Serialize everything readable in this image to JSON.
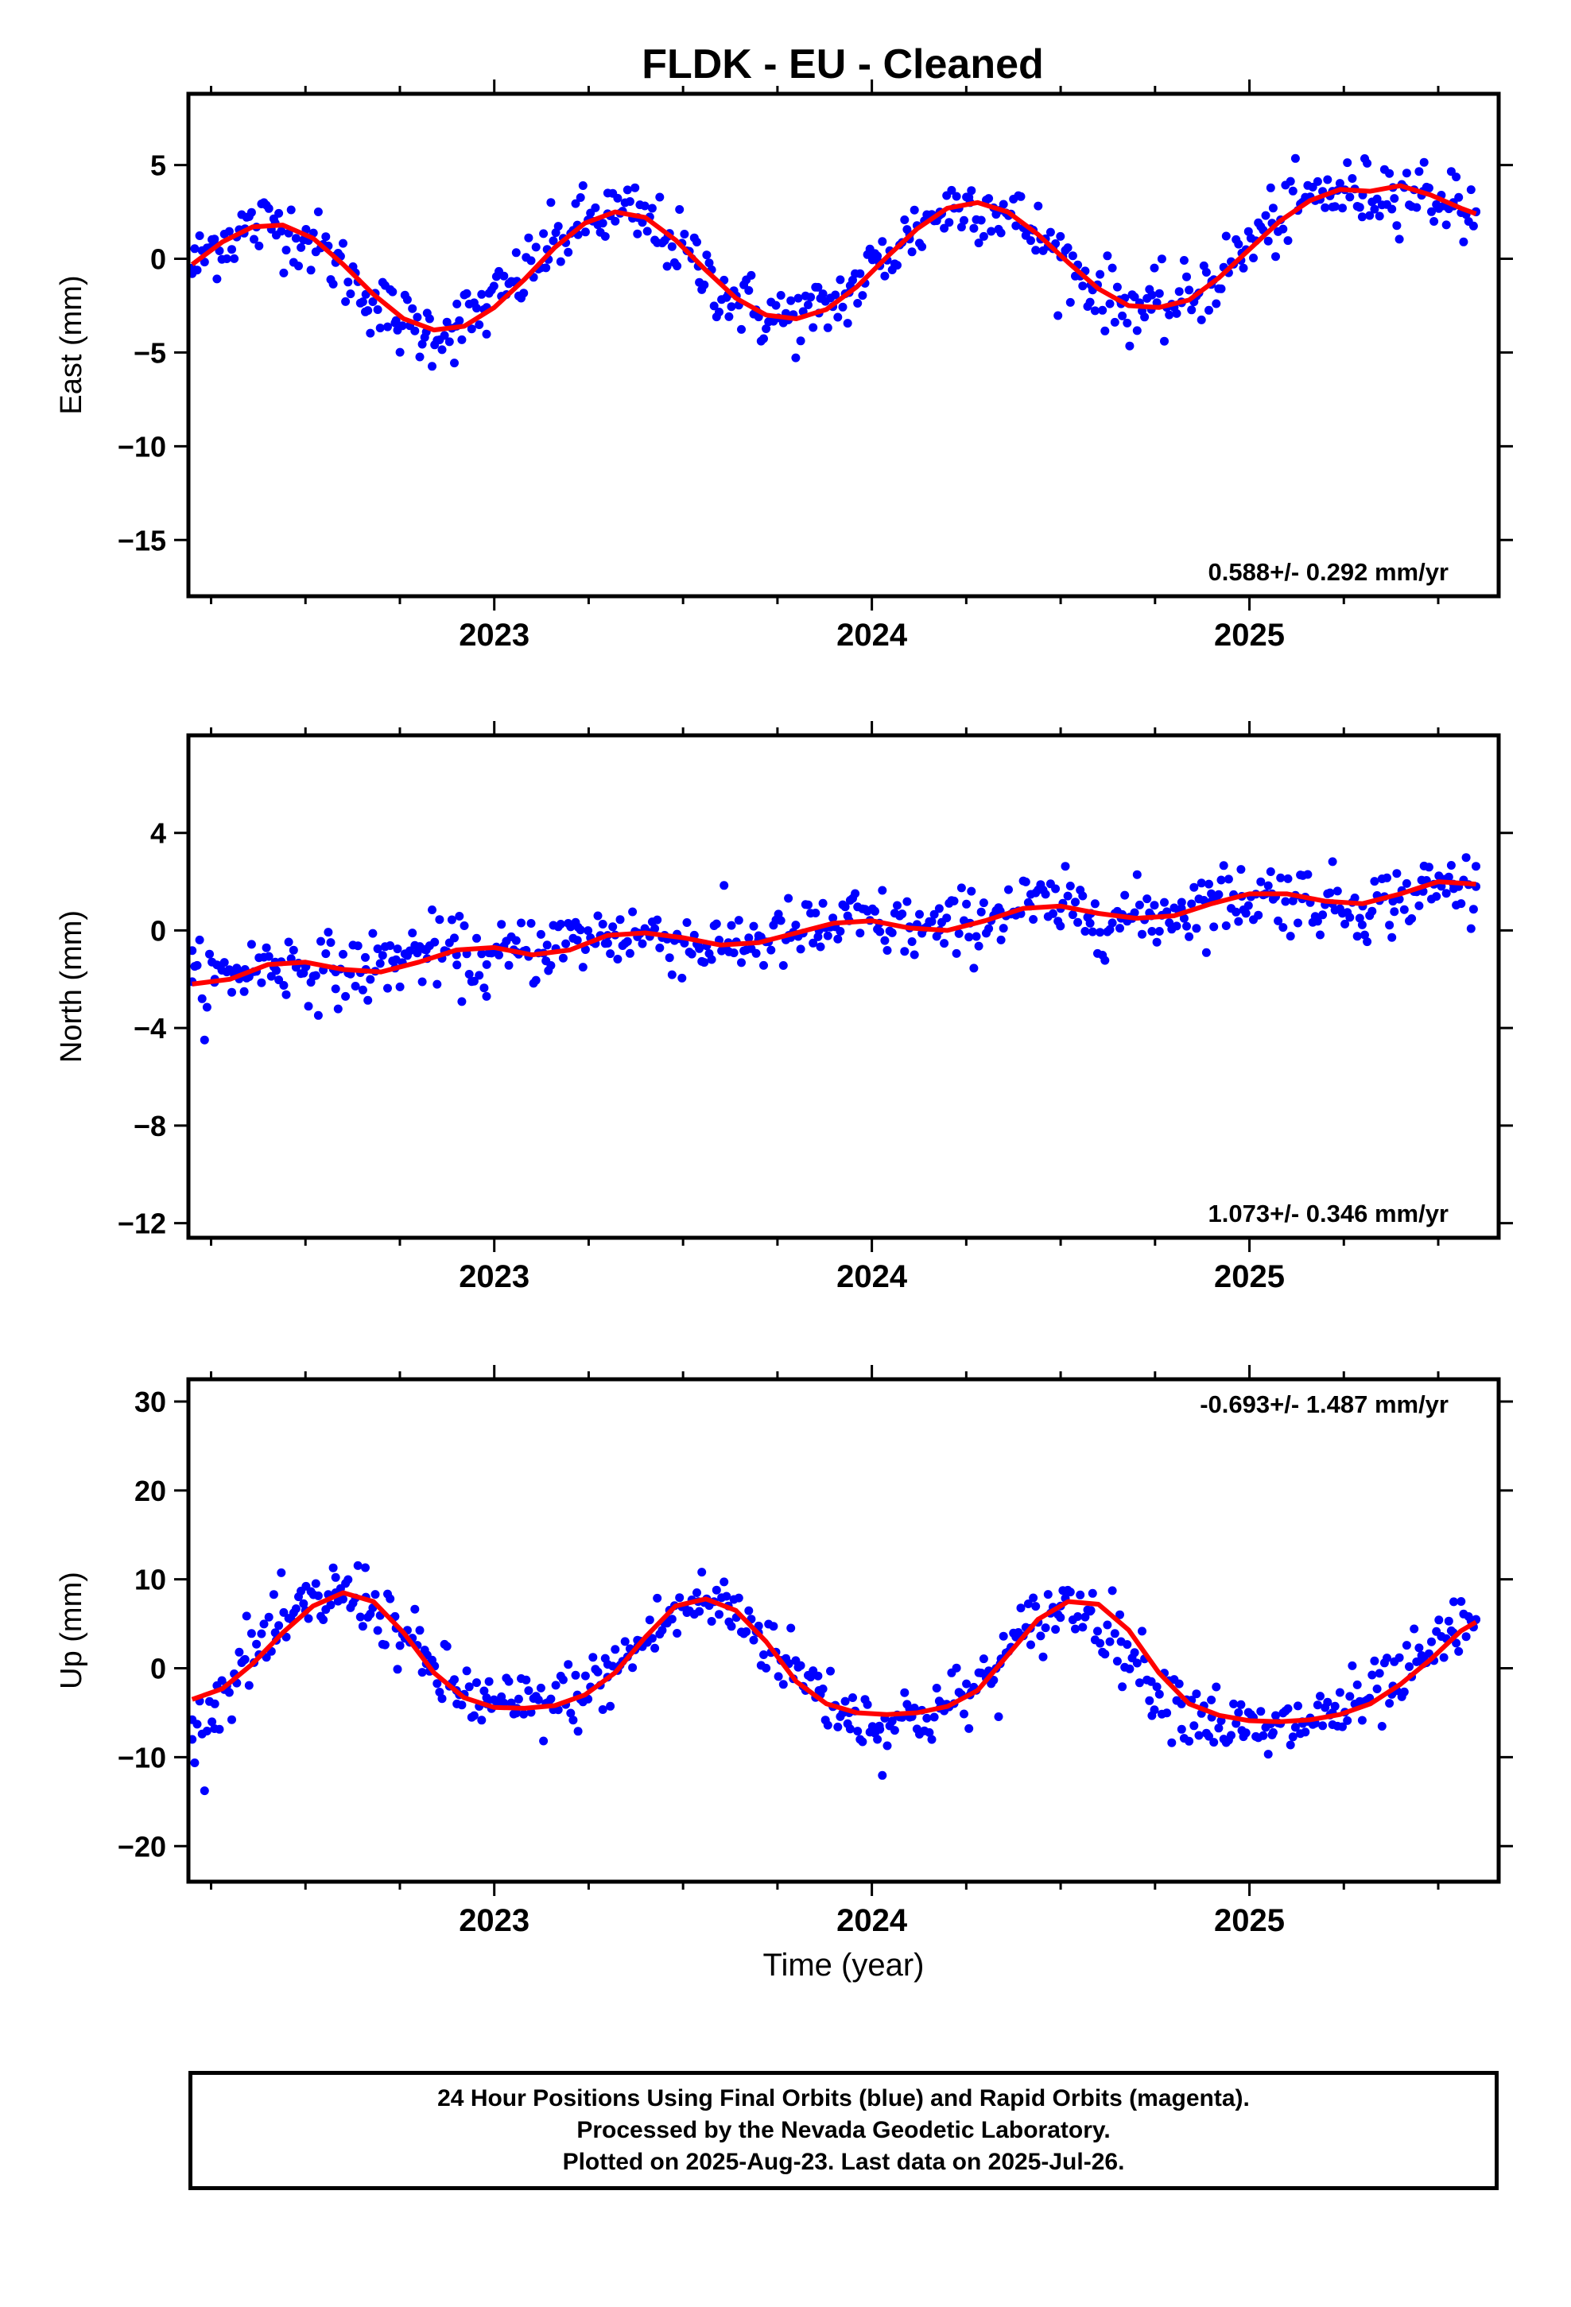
{
  "title": "FLDK  - EU - Cleaned",
  "footer": {
    "line1": "24 Hour Positions Using Final Orbits (blue) and Rapid Orbits (magenta).",
    "line2": "Processed by the Nevada Geodetic Laboratory.",
    "line3": "Plotted on 2025-Aug-23. Last data on 2025-Jul-26."
  },
  "colors": {
    "points": "#0000ff",
    "fit": "#ff0000",
    "frame": "#000000"
  },
  "chart_data": [
    {
      "type": "scatter",
      "ylabel": "East (mm)",
      "xlim": [
        2022.19,
        2025.66
      ],
      "ylim": [
        -18.0,
        8.8
      ],
      "xticks": [
        2023,
        2024,
        2025
      ],
      "xtick_labels": [
        "2023",
        "2024",
        "2025"
      ],
      "yticks": [
        -15,
        -10,
        -5,
        0,
        5
      ],
      "ytick_labels": [
        "−15",
        "−10",
        "−5",
        "0",
        "5"
      ],
      "rate_text": "0.588+/- 0.292 mm/yr",
      "rate_position": "bottom-right",
      "series": [
        {
          "kind": "points",
          "color": "#0000ff",
          "x": [
            2022.2,
            2022.26,
            2022.34,
            2022.42,
            2022.5,
            2022.58,
            2022.66,
            2022.74,
            2022.82,
            2022.9,
            2022.98,
            2023.06,
            2023.14,
            2023.22,
            2023.3,
            2023.38,
            2023.46,
            2023.54,
            2023.62,
            2023.7,
            2023.78,
            2023.86,
            2023.94,
            2024.02,
            2024.1,
            2024.18,
            2024.26,
            2024.34,
            2024.42,
            2024.5,
            2024.58,
            2024.66,
            2024.74,
            2024.82,
            2024.9,
            2024.98,
            2025.06,
            2025.14,
            2025.22,
            2025.3,
            2025.38,
            2025.46,
            2025.54,
            2025.6
          ],
          "y": [
            -0.5,
            0.8,
            1.6,
            1.9,
            1.2,
            -0.2,
            -1.9,
            -3.3,
            -3.9,
            -3.6,
            -2.6,
            -1.2,
            0.5,
            1.8,
            2.4,
            2.2,
            1.2,
            -0.4,
            -1.9,
            -2.9,
            -3.2,
            -2.9,
            -1.8,
            -0.2,
            1.3,
            2.5,
            3.0,
            2.6,
            1.6,
            0.1,
            -1.4,
            -2.4,
            -2.7,
            -2.3,
            -1.2,
            0.3,
            1.9,
            3.0,
            3.6,
            3.4,
            3.8,
            3.6,
            3.0,
            2.5
          ]
        },
        {
          "kind": "fit",
          "color": "#ff0000",
          "x": [
            2022.2,
            2022.28,
            2022.36,
            2022.44,
            2022.52,
            2022.6,
            2022.68,
            2022.76,
            2022.84,
            2022.92,
            2023.0,
            2023.08,
            2023.16,
            2023.24,
            2023.32,
            2023.4,
            2023.48,
            2023.56,
            2023.64,
            2023.72,
            2023.8,
            2023.88,
            2023.96,
            2024.04,
            2024.12,
            2024.2,
            2024.28,
            2024.36,
            2024.44,
            2024.52,
            2024.6,
            2024.68,
            2024.76,
            2024.84,
            2024.92,
            2025.0,
            2025.08,
            2025.16,
            2025.24,
            2025.32,
            2025.4,
            2025.48,
            2025.56,
            2025.6
          ],
          "y": [
            -0.3,
            0.9,
            1.7,
            1.8,
            1.1,
            -0.3,
            -1.9,
            -3.2,
            -3.8,
            -3.6,
            -2.6,
            -1.1,
            0.6,
            1.9,
            2.5,
            2.2,
            1.0,
            -0.6,
            -2.1,
            -3.0,
            -3.2,
            -2.7,
            -1.5,
            0.1,
            1.6,
            2.7,
            3.0,
            2.5,
            1.3,
            -0.2,
            -1.6,
            -2.5,
            -2.6,
            -2.2,
            -1.0,
            0.5,
            2.0,
            3.1,
            3.7,
            3.6,
            3.9,
            3.4,
            2.7,
            2.4
          ]
        }
      ]
    },
    {
      "type": "scatter",
      "ylabel": "North (mm)",
      "xlim": [
        2022.19,
        2025.66
      ],
      "ylim": [
        -12.6,
        8.0
      ],
      "xticks": [
        2023,
        2024,
        2025
      ],
      "xtick_labels": [
        "2023",
        "2024",
        "2025"
      ],
      "yticks": [
        -12,
        -8,
        -4,
        0,
        4
      ],
      "ytick_labels": [
        "−12",
        "−8",
        "−4",
        "0",
        "4"
      ],
      "rate_text": "1.073+/- 0.346 mm/yr",
      "rate_position": "bottom-right",
      "series": [
        {
          "kind": "points",
          "color": "#0000ff",
          "x": [
            2022.2,
            2022.26,
            2022.34,
            2022.42,
            2022.5,
            2022.58,
            2022.66,
            2022.74,
            2022.82,
            2022.9,
            2022.98,
            2023.06,
            2023.14,
            2023.22,
            2023.3,
            2023.38,
            2023.46,
            2023.54,
            2023.62,
            2023.7,
            2023.78,
            2023.86,
            2023.94,
            2024.02,
            2024.1,
            2024.18,
            2024.26,
            2024.34,
            2024.42,
            2024.5,
            2024.58,
            2024.66,
            2024.74,
            2024.82,
            2024.9,
            2024.98,
            2025.06,
            2025.14,
            2025.22,
            2025.3,
            2025.38,
            2025.46,
            2025.54,
            2025.6
          ],
          "y": [
            -2.1,
            -2.0,
            -1.6,
            -1.3,
            -1.5,
            -1.7,
            -1.6,
            -1.2,
            -0.8,
            -1.0,
            -1.4,
            -0.9,
            -0.6,
            -0.4,
            -0.2,
            -0.1,
            -0.3,
            -0.6,
            -0.5,
            -0.4,
            -0.2,
            0.0,
            0.4,
            0.3,
            0.1,
            0.0,
            0.3,
            0.8,
            1.0,
            0.9,
            0.7,
            0.5,
            0.6,
            0.9,
            1.2,
            1.4,
            1.5,
            1.3,
            1.1,
            1.0,
            1.2,
            1.6,
            1.9,
            1.8
          ]
        },
        {
          "kind": "fit",
          "color": "#ff0000",
          "x": [
            2022.2,
            2022.3,
            2022.4,
            2022.5,
            2022.6,
            2022.7,
            2022.8,
            2022.9,
            2023.0,
            2023.1,
            2023.2,
            2023.3,
            2023.4,
            2023.5,
            2023.6,
            2023.7,
            2023.8,
            2023.9,
            2024.0,
            2024.1,
            2024.2,
            2024.3,
            2024.4,
            2024.5,
            2024.6,
            2024.7,
            2024.8,
            2024.9,
            2025.0,
            2025.1,
            2025.2,
            2025.3,
            2025.4,
            2025.5,
            2025.6
          ],
          "y": [
            -2.2,
            -2.0,
            -1.4,
            -1.3,
            -1.6,
            -1.7,
            -1.3,
            -0.8,
            -0.7,
            -1.0,
            -0.8,
            -0.2,
            -0.1,
            -0.3,
            -0.6,
            -0.5,
            -0.1,
            0.3,
            0.4,
            0.1,
            0.0,
            0.4,
            0.9,
            1.0,
            0.7,
            0.5,
            0.6,
            1.1,
            1.5,
            1.5,
            1.2,
            1.1,
            1.5,
            2.0,
            1.9
          ]
        }
      ]
    },
    {
      "type": "scatter",
      "ylabel": "Up (mm)",
      "xlabel": "Time (year)",
      "xlim": [
        2022.19,
        2025.66
      ],
      "ylim": [
        -24.0,
        32.5
      ],
      "xticks": [
        2023,
        2024,
        2025
      ],
      "xtick_labels": [
        "2023",
        "2024",
        "2025"
      ],
      "yticks": [
        -20,
        -10,
        0,
        10,
        20,
        30
      ],
      "ytick_labels": [
        "−20",
        "−10",
        "0",
        "10",
        "20",
        "30"
      ],
      "rate_text": "-0.693+/- 1.487 mm/yr",
      "rate_position": "top-right",
      "series": [
        {
          "kind": "points",
          "color": "#0000ff",
          "x": [
            2022.2,
            2022.26,
            2022.34,
            2022.42,
            2022.5,
            2022.58,
            2022.66,
            2022.74,
            2022.82,
            2022.9,
            2022.98,
            2023.06,
            2023.14,
            2023.22,
            2023.3,
            2023.38,
            2023.46,
            2023.54,
            2023.62,
            2023.7,
            2023.78,
            2023.86,
            2023.94,
            2024.02,
            2024.1,
            2024.18,
            2024.26,
            2024.34,
            2024.42,
            2024.5,
            2024.58,
            2024.66,
            2024.74,
            2024.82,
            2024.9,
            2024.98,
            2025.06,
            2025.14,
            2025.22,
            2025.3,
            2025.38,
            2025.46,
            2025.54,
            2025.6
          ],
          "y": [
            -8.0,
            -4.0,
            1.0,
            4.0,
            6.5,
            8.5,
            8.0,
            4.5,
            0.5,
            -2.5,
            -4.0,
            -4.5,
            -4.0,
            -3.0,
            -1.0,
            2.5,
            5.5,
            7.5,
            7.0,
            4.0,
            0.5,
            -2.5,
            -5.0,
            -6.5,
            -5.5,
            -4.5,
            -3.0,
            0.5,
            4.5,
            7.0,
            6.5,
            3.0,
            -1.5,
            -4.0,
            -5.5,
            -7.0,
            -7.5,
            -6.0,
            -5.0,
            -4.0,
            -2.0,
            0.5,
            4.0,
            5.5
          ]
        },
        {
          "kind": "fit",
          "color": "#ff0000",
          "x": [
            2022.2,
            2022.28,
            2022.36,
            2022.44,
            2022.52,
            2022.6,
            2022.68,
            2022.76,
            2022.84,
            2022.92,
            2023.0,
            2023.08,
            2023.16,
            2023.24,
            2023.32,
            2023.4,
            2023.48,
            2023.56,
            2023.64,
            2023.72,
            2023.8,
            2023.88,
            2023.96,
            2024.04,
            2024.12,
            2024.2,
            2024.28,
            2024.36,
            2024.44,
            2024.52,
            2024.6,
            2024.68,
            2024.76,
            2024.84,
            2024.92,
            2025.0,
            2025.08,
            2025.16,
            2025.24,
            2025.32,
            2025.4,
            2025.48,
            2025.56,
            2025.6
          ],
          "y": [
            -3.5,
            -2.3,
            0.5,
            4.0,
            7.0,
            8.5,
            7.5,
            4.0,
            -0.5,
            -3.3,
            -4.4,
            -4.5,
            -4.2,
            -3.0,
            -0.5,
            3.5,
            7.0,
            7.8,
            6.5,
            3.0,
            -1.5,
            -4.0,
            -5.0,
            -5.2,
            -5.0,
            -4.3,
            -2.5,
            1.5,
            5.5,
            7.5,
            7.2,
            4.3,
            -0.5,
            -4.0,
            -5.3,
            -5.9,
            -6.0,
            -5.8,
            -5.2,
            -4.0,
            -1.8,
            1.0,
            4.2,
            5.2
          ]
        }
      ]
    }
  ]
}
